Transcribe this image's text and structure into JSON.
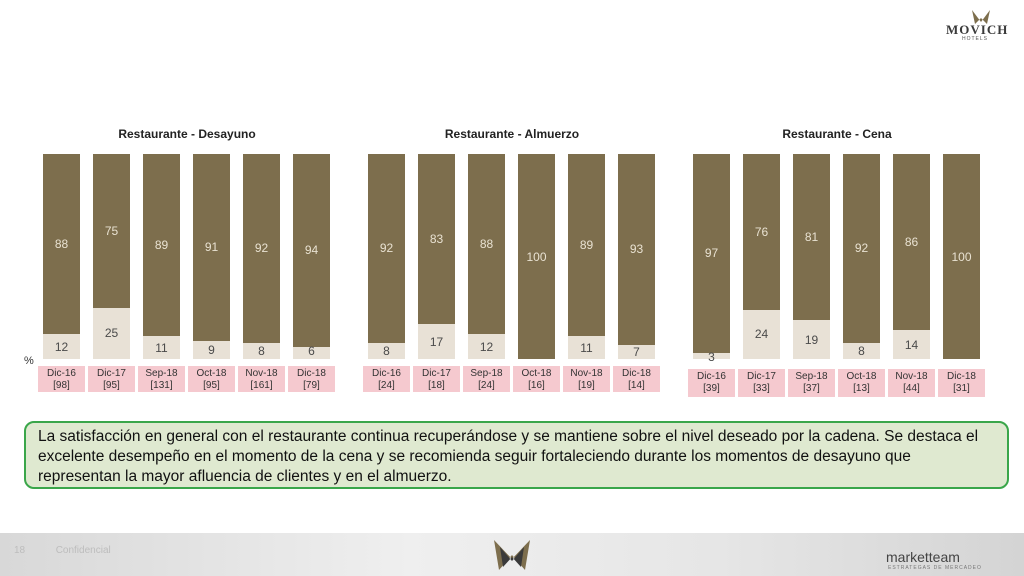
{
  "brand": {
    "name": "MOVICH",
    "sub": "HOTELS"
  },
  "percent_symbol": "%",
  "chart_data": [
    {
      "type": "bar",
      "title": "Restaurante - Desayuno",
      "categories": [
        "Dic-16",
        "Dic-17",
        "Sep-18",
        "Oct-18",
        "Nov-18",
        "Dic-18"
      ],
      "sample_sizes": [
        "[98]",
        "[95]",
        "[131]",
        "[95]",
        "[161]",
        "[79]"
      ],
      "series": [
        {
          "values": [
            88,
            75,
            89,
            91,
            92,
            94
          ]
        },
        {
          "values": [
            12,
            25,
            11,
            9,
            8,
            6
          ]
        }
      ]
    },
    {
      "type": "bar",
      "title": "Restaurante - Almuerzo",
      "categories": [
        "Dic-16",
        "Dic-17",
        "Sep-18",
        "Oct-18",
        "Nov-18",
        "Dic-18"
      ],
      "sample_sizes": [
        "[24]",
        "[18]",
        "[24]",
        "[16]",
        "[19]",
        "[14]"
      ],
      "series": [
        {
          "values": [
            92,
            83,
            88,
            100,
            89,
            93
          ]
        },
        {
          "values": [
            8,
            17,
            12,
            0,
            11,
            7
          ]
        }
      ]
    },
    {
      "type": "bar",
      "title": "Restaurante - Cena",
      "categories": [
        "Dic-16",
        "Dic-17",
        "Sep-18",
        "Oct-18",
        "Nov-18",
        "Dic-18"
      ],
      "sample_sizes": [
        "[39]",
        "[33]",
        "[37]",
        "[13]",
        "[44]",
        "[31]"
      ],
      "series": [
        {
          "values": [
            97,
            76,
            81,
            92,
            86,
            100
          ]
        },
        {
          "values": [
            3,
            24,
            19,
            8,
            14,
            0
          ]
        }
      ]
    }
  ],
  "comment": "La satisfacción en general con el restaurante continua recuperándose y se mantiene sobre el nivel deseado por la cadena. Se destaca el excelente desempeño en el momento de la cena y se recomienda seguir fortaleciendo durante los momentos de desayuno que representan la mayor afluencia de clientes y en el almuerzo.",
  "footer": {
    "page": "18",
    "left_text": "Confidencial",
    "brand": "marketteam",
    "brand_sub": "ESTRATEGAS DE MERCADEO"
  },
  "colors": {
    "top": "#7d6e4d",
    "bottom": "#e8e1d6",
    "label_bg": "#f5c9cf",
    "comment_border": "#3aa64a",
    "comment_bg": "#dfe9d0"
  }
}
